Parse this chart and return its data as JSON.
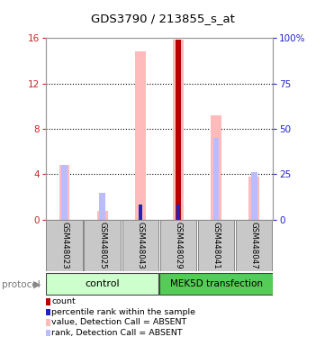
{
  "title": "GDS3790 / 213855_s_at",
  "samples": [
    "GSM448023",
    "GSM448025",
    "GSM448043",
    "GSM448029",
    "GSM448041",
    "GSM448047"
  ],
  "ylim_left": [
    0,
    16
  ],
  "ylim_right": [
    0,
    100
  ],
  "yticks_left": [
    0,
    4,
    8,
    12,
    16
  ],
  "yticks_right": [
    0,
    25,
    50,
    75,
    100
  ],
  "ytick_labels_right": [
    "0",
    "25",
    "50",
    "75",
    "100%"
  ],
  "value_absent": [
    4.8,
    0.8,
    14.8,
    15.9,
    9.2,
    3.8
  ],
  "rank_absent": [
    4.8,
    2.4,
    null,
    null,
    7.2,
    4.2
  ],
  "count_val": [
    null,
    null,
    null,
    15.9,
    null,
    null
  ],
  "percentile_rank_left": [
    null,
    null,
    8.2,
    8.4,
    null,
    null
  ],
  "colors": {
    "count": "#bb0000",
    "percentile_rank": "#2222bb",
    "value_absent": "#ffbbbb",
    "rank_absent": "#bbbbff",
    "left_axis": "#cc2222",
    "right_axis": "#2222cc",
    "bg_sample_box": "#c8c8c8",
    "ctrl_group": "#ccffcc",
    "mek_group": "#55cc55"
  },
  "legend": [
    {
      "color": "#bb0000",
      "label": "count"
    },
    {
      "color": "#2222bb",
      "label": "percentile rank within the sample"
    },
    {
      "color": "#ffbbbb",
      "label": "value, Detection Call = ABSENT"
    },
    {
      "color": "#bbbbff",
      "label": "rank, Detection Call = ABSENT"
    }
  ],
  "bw_value": 0.28,
  "bw_rank": 0.16,
  "bw_count": 0.13,
  "bw_pct": 0.09
}
